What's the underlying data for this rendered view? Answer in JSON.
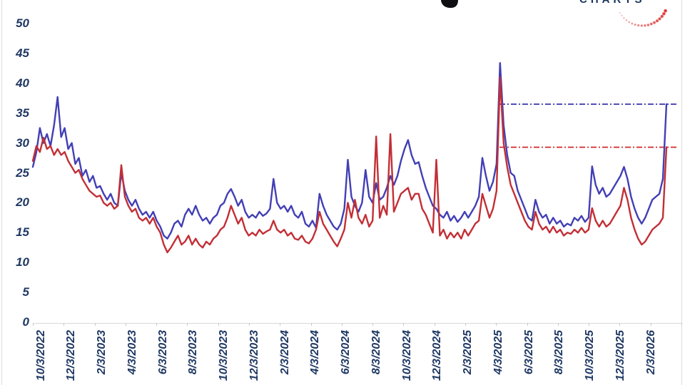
{
  "branding": {
    "logo_text": "CHARTS",
    "logo_text_color": "#17335e",
    "logo_dot_color": "#e03b3b",
    "note": "top of image is cropped; only bottom of logo and a title letter descender are visible"
  },
  "chart_data": {
    "type": "line",
    "title": "",
    "xlabel": "",
    "ylabel": "",
    "ylim": [
      0,
      50
    ],
    "y_ticks": [
      50,
      45,
      40,
      35,
      30,
      25,
      20,
      15,
      10,
      5,
      0
    ],
    "x_labels": [
      "10/3/2022",
      "12/3/2022",
      "2/3/2023",
      "4/3/2023",
      "6/3/2023",
      "8/3/2023",
      "10/3/2023",
      "12/3/2023",
      "2/3/2024",
      "4/3/2024",
      "6/3/2024",
      "8/3/2024",
      "10/3/2024",
      "12/3/2024",
      "2/3/2025",
      "4/3/2025",
      "6/3/2025",
      "8/3/2025",
      "10/3/2025",
      "12/3/2025",
      "2/3/2026"
    ],
    "grid": false,
    "legend": "none",
    "axis_label_color": "#1f3864",
    "series": [
      {
        "name": "blue",
        "color": "#423fb5",
        "values": [
          26.0,
          28.5,
          32.5,
          30.0,
          31.5,
          29.5,
          33.0,
          37.7,
          31.0,
          32.5,
          29.0,
          30.0,
          26.5,
          27.5,
          24.5,
          25.5,
          23.5,
          24.5,
          22.5,
          22.8,
          21.5,
          20.5,
          21.5,
          20.0,
          19.5,
          25.0,
          22.0,
          20.5,
          19.5,
          20.5,
          19.0,
          18.0,
          18.5,
          17.5,
          18.5,
          17.0,
          16.0,
          14.5,
          14.0,
          15.0,
          16.5,
          17.0,
          16.0,
          18.0,
          19.0,
          18.0,
          19.5,
          18.0,
          17.0,
          17.5,
          16.5,
          17.5,
          18.0,
          19.5,
          20.0,
          21.5,
          22.3,
          21.0,
          19.5,
          20.5,
          18.5,
          17.5,
          18.0,
          17.5,
          18.5,
          17.8,
          18.2,
          19.0,
          24.0,
          20.0,
          19.0,
          19.5,
          18.5,
          19.5,
          18.0,
          17.5,
          18.5,
          16.5,
          16.0,
          17.0,
          15.8,
          21.5,
          19.5,
          18.0,
          17.0,
          16.0,
          15.5,
          16.5,
          19.0,
          27.2,
          21.0,
          19.5,
          18.5,
          20.0,
          25.5,
          21.0,
          20.0,
          23.3,
          20.5,
          21.0,
          22.5,
          24.5,
          23.0,
          24.5,
          27.0,
          29.0,
          30.5,
          28.0,
          26.5,
          26.8,
          24.5,
          22.5,
          21.0,
          19.5,
          19.0,
          18.0,
          17.5,
          18.5,
          17.0,
          17.8,
          16.8,
          17.5,
          18.5,
          17.5,
          18.5,
          19.5,
          21.0,
          27.5,
          24.5,
          22.0,
          23.5,
          26.5,
          43.4,
          33.0,
          28.0,
          25.0,
          24.5,
          22.0,
          20.5,
          19.0,
          17.5,
          17.0,
          20.5,
          18.5,
          17.5,
          18.0,
          16.5,
          17.5,
          16.5,
          17.0,
          16.0,
          16.5,
          16.2,
          17.5,
          17.0,
          17.8,
          16.8,
          17.5,
          26.1,
          23.0,
          21.5,
          22.5,
          21.0,
          21.5,
          22.5,
          23.5,
          24.5,
          26.0,
          24.0,
          21.0,
          19.0,
          17.5,
          16.5,
          17.5,
          19.0,
          20.5,
          21.0,
          21.5,
          24.0,
          36.5
        ]
      },
      {
        "name": "red",
        "color": "#c22f35",
        "values": [
          27.0,
          29.5,
          28.5,
          30.9,
          29.0,
          29.5,
          28.0,
          29.0,
          28.0,
          28.5,
          27.0,
          26.0,
          25.0,
          25.5,
          24.0,
          23.0,
          22.0,
          21.5,
          21.0,
          21.2,
          20.0,
          19.5,
          20.0,
          19.0,
          19.5,
          26.3,
          21.0,
          19.5,
          18.5,
          19.0,
          17.5,
          17.0,
          17.5,
          16.5,
          17.5,
          16.0,
          15.0,
          13.0,
          11.7,
          12.5,
          13.5,
          14.5,
          13.0,
          13.5,
          14.5,
          13.0,
          14.0,
          13.0,
          12.5,
          13.5,
          13.0,
          14.0,
          14.5,
          15.5,
          16.0,
          17.5,
          19.5,
          18.0,
          16.5,
          17.5,
          15.5,
          14.5,
          15.0,
          14.5,
          15.5,
          14.8,
          15.2,
          15.5,
          17.0,
          15.5,
          15.0,
          15.5,
          14.5,
          15.0,
          14.0,
          13.8,
          14.5,
          13.5,
          13.2,
          14.0,
          15.5,
          18.5,
          16.5,
          15.5,
          14.5,
          13.5,
          12.7,
          14.0,
          15.5,
          20.0,
          17.5,
          20.5,
          17.5,
          16.5,
          18.0,
          16.0,
          17.0,
          31.1,
          17.5,
          19.5,
          18.0,
          31.5,
          18.5,
          20.0,
          21.5,
          22.0,
          22.5,
          20.5,
          21.5,
          21.5,
          19.0,
          18.0,
          16.5,
          15.0,
          27.2,
          14.5,
          15.5,
          14.0,
          15.0,
          14.2,
          15.0,
          14.0,
          15.5,
          14.5,
          15.5,
          16.5,
          17.0,
          21.5,
          19.5,
          17.5,
          19.0,
          22.0,
          41.0,
          30.0,
          26.0,
          23.0,
          21.5,
          20.0,
          18.5,
          17.0,
          16.0,
          15.5,
          18.5,
          16.5,
          15.5,
          16.0,
          15.0,
          16.0,
          15.0,
          15.5,
          14.5,
          15.0,
          14.8,
          15.5,
          15.0,
          15.8,
          15.0,
          15.5,
          19.1,
          17.0,
          16.0,
          17.0,
          16.0,
          16.5,
          17.5,
          18.5,
          19.5,
          22.5,
          20.5,
          17.5,
          15.5,
          14.0,
          13.0,
          13.5,
          14.5,
          15.5,
          16.0,
          16.5,
          17.5,
          29.3
        ]
      }
    ],
    "reference_lines": [
      {
        "series": "blue",
        "value": 36.5,
        "style": "dash-dot",
        "color": "#3a36ae",
        "from_x_label": "4/3/2025",
        "to": "right edge"
      },
      {
        "series": "red",
        "value": 29.3,
        "style": "dash-dot",
        "color": "#d02a2a",
        "from_x_label": "4/3/2025",
        "to": "right edge"
      }
    ]
  }
}
